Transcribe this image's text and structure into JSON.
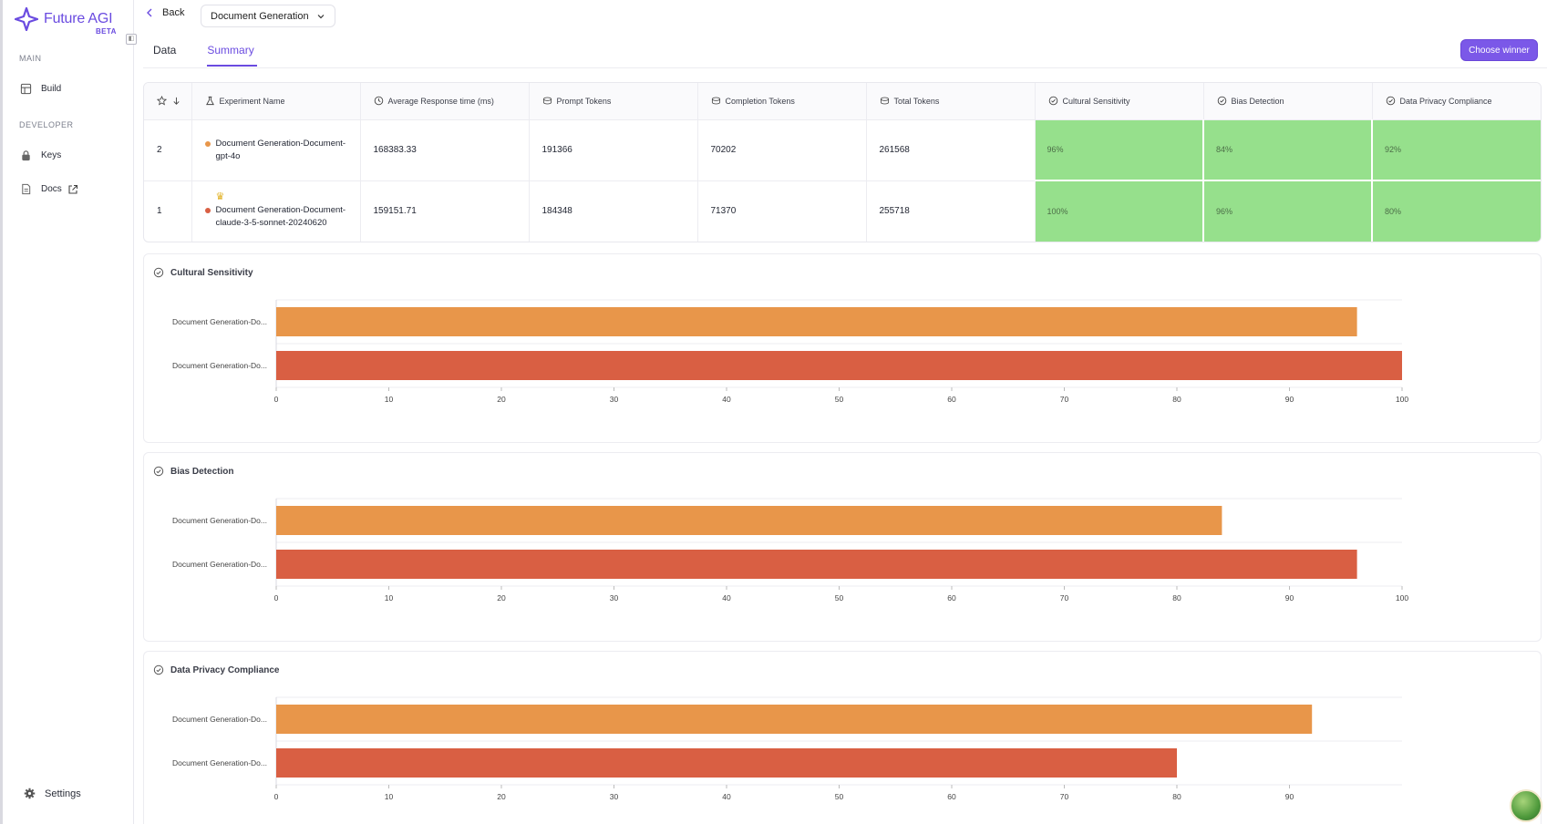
{
  "app": {
    "name": "Future AGI",
    "badge": "BETA"
  },
  "sidebar": {
    "sections": [
      {
        "label": "MAIN",
        "items": [
          {
            "label": "Build",
            "icon": "grid-icon"
          }
        ]
      },
      {
        "label": "DEVELOPER",
        "items": [
          {
            "label": "Keys",
            "icon": "lock-icon"
          },
          {
            "label": "Docs",
            "icon": "document-icon"
          }
        ]
      }
    ],
    "settings_label": "Settings"
  },
  "header": {
    "back_label": "Back",
    "breadcrumb_select": "Document Generation",
    "tabs": [
      {
        "label": "Data",
        "active": false
      },
      {
        "label": "Summary",
        "active": true
      }
    ],
    "choose_winner_label": "Choose winner"
  },
  "table": {
    "columns": [
      "Experiment Name",
      "Average Response time (ms)",
      "Prompt Tokens",
      "Completion Tokens",
      "Total Tokens",
      "Cultural Sensitivity",
      "Bias Detection",
      "Data Privacy Compliance"
    ],
    "rows": [
      {
        "rank": "2",
        "winner": false,
        "dot_color": "#e8964a",
        "name": "Document Generation-Document-gpt-4o",
        "avg_response_time": "168383.33",
        "prompt_tokens": "191366",
        "completion_tokens": "70202",
        "total_tokens": "261568",
        "cultural_sensitivity": "96%",
        "bias_detection": "84%",
        "data_privacy_compliance": "92%"
      },
      {
        "rank": "1",
        "winner": true,
        "dot_color": "#d95f43",
        "name": "Document Generation-Document-claude-3-5-sonnet-20240620",
        "avg_response_time": "159151.71",
        "prompt_tokens": "184348",
        "completion_tokens": "71370",
        "total_tokens": "255718",
        "cultural_sensitivity": "100%",
        "bias_detection": "96%",
        "data_privacy_compliance": "80%"
      }
    ]
  },
  "chart_data": [
    {
      "type": "bar",
      "orientation": "horizontal",
      "title": "Cultural Sensitivity",
      "categories": [
        "Document Generation-Do...",
        "Document Generation-Do..."
      ],
      "values": [
        96,
        100
      ],
      "colors": [
        "#e8964a",
        "#d95f43"
      ],
      "xlim": [
        0,
        100
      ],
      "xticks": [
        0,
        10,
        20,
        30,
        40,
        50,
        60,
        70,
        80,
        90,
        100
      ],
      "grid": true
    },
    {
      "type": "bar",
      "orientation": "horizontal",
      "title": "Bias Detection",
      "categories": [
        "Document Generation-Do...",
        "Document Generation-Do..."
      ],
      "values": [
        84,
        96
      ],
      "colors": [
        "#e8964a",
        "#d95f43"
      ],
      "xlim": [
        0,
        100
      ],
      "xticks": [
        0,
        10,
        20,
        30,
        40,
        50,
        60,
        70,
        80,
        90,
        100
      ],
      "grid": true
    },
    {
      "type": "bar",
      "orientation": "horizontal",
      "title": "Data Privacy Compliance",
      "categories": [
        "Document Generation-Do...",
        "Document Generation-Do..."
      ],
      "values": [
        92,
        80
      ],
      "colors": [
        "#e8964a",
        "#d95f43"
      ],
      "xlim": [
        0,
        100
      ],
      "xticks": [
        0,
        10,
        20,
        30,
        40,
        50,
        60,
        70,
        80,
        90
      ],
      "grid": true
    }
  ]
}
